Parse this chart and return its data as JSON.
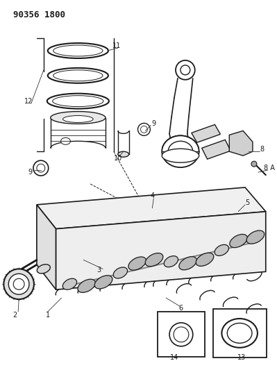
{
  "title": "90356 1800",
  "bg": "#ffffff",
  "lc": "#1a1a1a",
  "fig_w": 3.99,
  "fig_h": 5.33,
  "dpi": 100
}
